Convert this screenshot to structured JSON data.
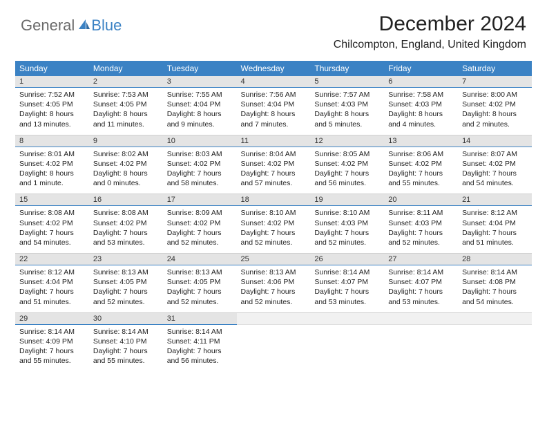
{
  "logo": {
    "part1": "General",
    "part2": "Blue"
  },
  "title": "December 2024",
  "subtitle": "Chilcompton, England, United Kingdom",
  "colors": {
    "header_bg": "#3b82c4",
    "header_text": "#ffffff",
    "daynum_bg": "#e4e4e4",
    "daynum_border": "#3b82c4",
    "row_border": "#d0d0d0",
    "logo_gray": "#6a6a6a",
    "logo_blue": "#3b82c4",
    "body_bg": "#ffffff",
    "text": "#222222"
  },
  "weekdays": [
    "Sunday",
    "Monday",
    "Tuesday",
    "Wednesday",
    "Thursday",
    "Friday",
    "Saturday"
  ],
  "days": [
    {
      "n": "1",
      "sunrise": "7:52 AM",
      "sunset": "4:05 PM",
      "daylight": "8 hours and 13 minutes."
    },
    {
      "n": "2",
      "sunrise": "7:53 AM",
      "sunset": "4:05 PM",
      "daylight": "8 hours and 11 minutes."
    },
    {
      "n": "3",
      "sunrise": "7:55 AM",
      "sunset": "4:04 PM",
      "daylight": "8 hours and 9 minutes."
    },
    {
      "n": "4",
      "sunrise": "7:56 AM",
      "sunset": "4:04 PM",
      "daylight": "8 hours and 7 minutes."
    },
    {
      "n": "5",
      "sunrise": "7:57 AM",
      "sunset": "4:03 PM",
      "daylight": "8 hours and 5 minutes."
    },
    {
      "n": "6",
      "sunrise": "7:58 AM",
      "sunset": "4:03 PM",
      "daylight": "8 hours and 4 minutes."
    },
    {
      "n": "7",
      "sunrise": "8:00 AM",
      "sunset": "4:02 PM",
      "daylight": "8 hours and 2 minutes."
    },
    {
      "n": "8",
      "sunrise": "8:01 AM",
      "sunset": "4:02 PM",
      "daylight": "8 hours and 1 minute."
    },
    {
      "n": "9",
      "sunrise": "8:02 AM",
      "sunset": "4:02 PM",
      "daylight": "8 hours and 0 minutes."
    },
    {
      "n": "10",
      "sunrise": "8:03 AM",
      "sunset": "4:02 PM",
      "daylight": "7 hours and 58 minutes."
    },
    {
      "n": "11",
      "sunrise": "8:04 AM",
      "sunset": "4:02 PM",
      "daylight": "7 hours and 57 minutes."
    },
    {
      "n": "12",
      "sunrise": "8:05 AM",
      "sunset": "4:02 PM",
      "daylight": "7 hours and 56 minutes."
    },
    {
      "n": "13",
      "sunrise": "8:06 AM",
      "sunset": "4:02 PM",
      "daylight": "7 hours and 55 minutes."
    },
    {
      "n": "14",
      "sunrise": "8:07 AM",
      "sunset": "4:02 PM",
      "daylight": "7 hours and 54 minutes."
    },
    {
      "n": "15",
      "sunrise": "8:08 AM",
      "sunset": "4:02 PM",
      "daylight": "7 hours and 54 minutes."
    },
    {
      "n": "16",
      "sunrise": "8:08 AM",
      "sunset": "4:02 PM",
      "daylight": "7 hours and 53 minutes."
    },
    {
      "n": "17",
      "sunrise": "8:09 AM",
      "sunset": "4:02 PM",
      "daylight": "7 hours and 52 minutes."
    },
    {
      "n": "18",
      "sunrise": "8:10 AM",
      "sunset": "4:02 PM",
      "daylight": "7 hours and 52 minutes."
    },
    {
      "n": "19",
      "sunrise": "8:10 AM",
      "sunset": "4:03 PM",
      "daylight": "7 hours and 52 minutes."
    },
    {
      "n": "20",
      "sunrise": "8:11 AM",
      "sunset": "4:03 PM",
      "daylight": "7 hours and 52 minutes."
    },
    {
      "n": "21",
      "sunrise": "8:12 AM",
      "sunset": "4:04 PM",
      "daylight": "7 hours and 51 minutes."
    },
    {
      "n": "22",
      "sunrise": "8:12 AM",
      "sunset": "4:04 PM",
      "daylight": "7 hours and 51 minutes."
    },
    {
      "n": "23",
      "sunrise": "8:13 AM",
      "sunset": "4:05 PM",
      "daylight": "7 hours and 52 minutes."
    },
    {
      "n": "24",
      "sunrise": "8:13 AM",
      "sunset": "4:05 PM",
      "daylight": "7 hours and 52 minutes."
    },
    {
      "n": "25",
      "sunrise": "8:13 AM",
      "sunset": "4:06 PM",
      "daylight": "7 hours and 52 minutes."
    },
    {
      "n": "26",
      "sunrise": "8:14 AM",
      "sunset": "4:07 PM",
      "daylight": "7 hours and 53 minutes."
    },
    {
      "n": "27",
      "sunrise": "8:14 AM",
      "sunset": "4:07 PM",
      "daylight": "7 hours and 53 minutes."
    },
    {
      "n": "28",
      "sunrise": "8:14 AM",
      "sunset": "4:08 PM",
      "daylight": "7 hours and 54 minutes."
    },
    {
      "n": "29",
      "sunrise": "8:14 AM",
      "sunset": "4:09 PM",
      "daylight": "7 hours and 55 minutes."
    },
    {
      "n": "30",
      "sunrise": "8:14 AM",
      "sunset": "4:10 PM",
      "daylight": "7 hours and 55 minutes."
    },
    {
      "n": "31",
      "sunrise": "8:14 AM",
      "sunset": "4:11 PM",
      "daylight": "7 hours and 56 minutes."
    }
  ],
  "labels": {
    "sunrise": "Sunrise: ",
    "sunset": "Sunset: ",
    "daylight": "Daylight: "
  }
}
